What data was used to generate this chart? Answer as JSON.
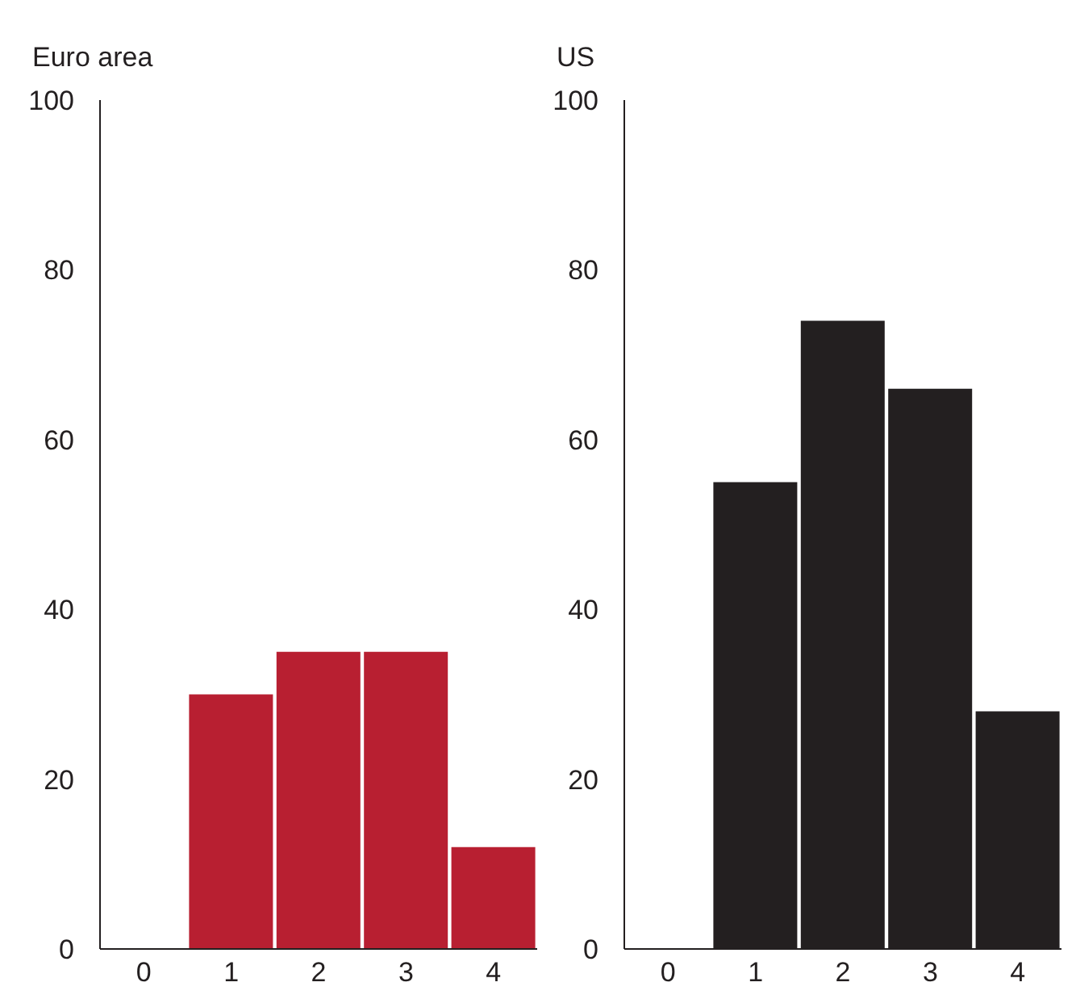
{
  "chart_data": [
    {
      "type": "bar",
      "title": "Euro area",
      "categories": [
        "0",
        "1",
        "2",
        "3",
        "4"
      ],
      "values": [
        0,
        30,
        35,
        35,
        12
      ],
      "color": "#b81f31",
      "ylim": [
        0,
        100
      ],
      "yticks": [
        0,
        20,
        40,
        60,
        80,
        100
      ],
      "grid": false
    },
    {
      "type": "bar",
      "title": "US",
      "categories": [
        "0",
        "1",
        "2",
        "3",
        "4"
      ],
      "values": [
        0,
        55,
        74,
        66,
        28
      ],
      "color": "#231f20",
      "ylim": [
        0,
        100
      ],
      "yticks": [
        0,
        20,
        40,
        60,
        80,
        100
      ],
      "grid": false
    }
  ]
}
